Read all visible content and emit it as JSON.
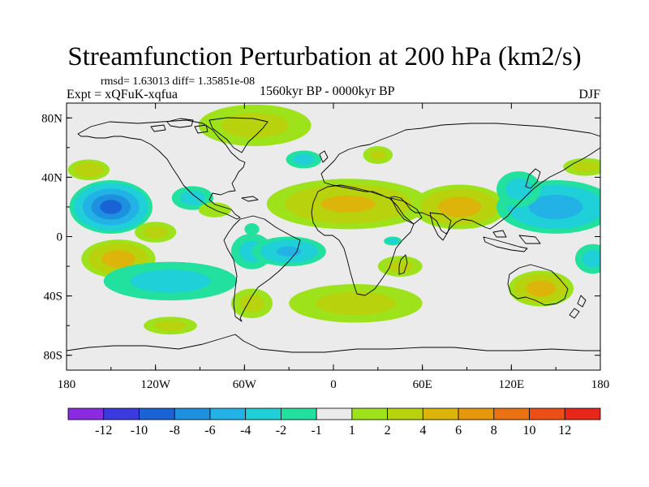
{
  "title": "Streamfunction Perturbation at 200 hPa (km2/s)",
  "stats": "rmsd= 1.63013 diff= 1.35851e-08",
  "experiment": "Expt = xQFuK-xqfua",
  "period": "1560kyr BP - 0000kyr BP",
  "season": "DJF",
  "lat_ticks": [
    {
      "label": "80N",
      "lat": 80
    },
    {
      "label": "40N",
      "lat": 40
    },
    {
      "label": "0",
      "lat": 0
    },
    {
      "label": "40S",
      "lat": -40
    },
    {
      "label": "80S",
      "lat": -80
    }
  ],
  "lon_ticks": [
    {
      "label": "180",
      "lon": -180
    },
    {
      "label": "120W",
      "lon": -120
    },
    {
      "label": "60W",
      "lon": -60
    },
    {
      "label": "0",
      "lon": 0
    },
    {
      "label": "60E",
      "lon": 60
    },
    {
      "label": "120E",
      "lon": 120
    },
    {
      "label": "180",
      "lon": 180
    }
  ],
  "colorbar": {
    "colors": [
      "#8a2be2",
      "#3a3adf",
      "#1a63d6",
      "#1e90e0",
      "#22b2e6",
      "#1fd0d8",
      "#22e09e",
      "#ebebeb",
      "#9ee21c",
      "#b8d20e",
      "#dcb40a",
      "#e5980c",
      "#ea7212",
      "#ec4f16",
      "#e8261a"
    ],
    "labels": [
      "-12",
      "-10",
      "-8",
      "-6",
      "-4",
      "-2",
      "-1",
      "1",
      "2",
      "4",
      "6",
      "8",
      "10",
      "12"
    ]
  },
  "anomalies": [
    {
      "lon": -150,
      "lat": 20,
      "rlon": 28,
      "rlat": 18,
      "value": -9
    },
    {
      "lon": -165,
      "lat": 45,
      "rlon": 14,
      "rlat": 7,
      "value": 3
    },
    {
      "lon": -145,
      "lat": -15,
      "rlon": 25,
      "rlat": 13,
      "value": 5
    },
    {
      "lon": -120,
      "lat": 3,
      "rlon": 14,
      "rlat": 7,
      "value": 2
    },
    {
      "lon": -110,
      "lat": -30,
      "rlon": 45,
      "rlat": 13,
      "value": -2
    },
    {
      "lon": -95,
      "lat": 26,
      "rlon": 14,
      "rlat": 8,
      "value": -2
    },
    {
      "lon": -80,
      "lat": 18,
      "rlon": 11,
      "rlat": 5,
      "value": 1
    },
    {
      "lon": -110,
      "lat": -60,
      "rlon": 18,
      "rlat": 6,
      "value": 2
    },
    {
      "lon": -55,
      "lat": -10,
      "rlon": 14,
      "rlat": 12,
      "value": -2
    },
    {
      "lon": -30,
      "lat": -10,
      "rlon": 25,
      "rlat": 10,
      "value": -4
    },
    {
      "lon": -55,
      "lat": -45,
      "rlon": 14,
      "rlat": 10,
      "value": 2
    },
    {
      "lon": -53,
      "lat": 75,
      "rlon": 38,
      "rlat": 14,
      "value": 2
    },
    {
      "lon": -20,
      "lat": 52,
      "rlon": 12,
      "rlat": 6,
      "value": -2
    },
    {
      "lon": 30,
      "lat": 55,
      "rlon": 10,
      "rlat": 6,
      "value": 2
    },
    {
      "lon": 10,
      "lat": 22,
      "rlon": 55,
      "rlat": 17,
      "value": 4
    },
    {
      "lon": 85,
      "lat": 20,
      "rlon": 32,
      "rlat": 15,
      "value": 5
    },
    {
      "lon": 45,
      "lat": -20,
      "rlon": 15,
      "rlat": 7,
      "value": 2
    },
    {
      "lon": 40,
      "lat": -3,
      "rlon": 6,
      "rlat": 3,
      "value": -2
    },
    {
      "lon": 15,
      "lat": -45,
      "rlon": 45,
      "rlat": 13,
      "value": 2
    },
    {
      "lon": 150,
      "lat": 20,
      "rlon": 40,
      "rlat": 18,
      "value": -5
    },
    {
      "lon": 125,
      "lat": 32,
      "rlon": 15,
      "rlat": 12,
      "value": -2
    },
    {
      "lon": 140,
      "lat": -35,
      "rlon": 22,
      "rlat": 12,
      "value": 5
    },
    {
      "lon": 175,
      "lat": -15,
      "rlon": 12,
      "rlat": 10,
      "value": -2
    },
    {
      "lon": 170,
      "lat": 47,
      "rlon": 15,
      "rlat": 6,
      "value": 2
    },
    {
      "lon": -55,
      "lat": 5,
      "rlon": 5,
      "rlat": 4,
      "value": -1
    }
  ]
}
